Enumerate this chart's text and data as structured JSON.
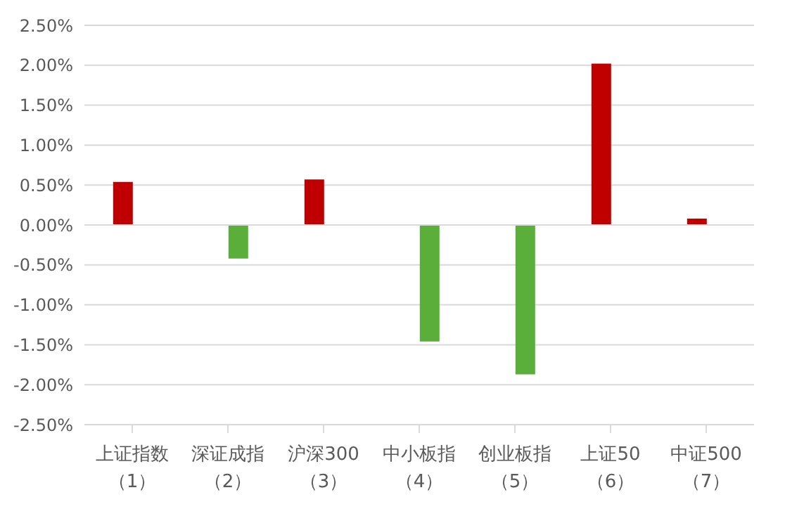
{
  "chart_data": {
    "type": "bar",
    "categories": [
      "上证指数（1）",
      "深证成指（2）",
      "沪深300（3）",
      "中小板指（4）",
      "创业板指（5）",
      "上证50（6）",
      "中证500（7）"
    ],
    "series": [
      {
        "color": "#c00000",
        "values": [
          0.54,
          null,
          0.57,
          null,
          null,
          2.02,
          0.08
        ]
      },
      {
        "color": "#5aae3a",
        "values": [
          null,
          -0.42,
          null,
          -1.46,
          -1.87,
          null,
          null
        ]
      }
    ],
    "ylim": [
      -2.5,
      2.5
    ],
    "yticks": [
      {
        "value": -2.5,
        "label": "-2.50%"
      },
      {
        "value": -2,
        "label": "-2.00%"
      },
      {
        "value": -1.5,
        "label": "-1.50%"
      },
      {
        "value": -1,
        "label": "-1.00%"
      },
      {
        "value": -0.5,
        "label": "-0.50%"
      },
      {
        "value": 0,
        "label": "0.00%"
      },
      {
        "value": 0.5,
        "label": "0.50%"
      },
      {
        "value": 1,
        "label": "1.00%"
      },
      {
        "value": 1.5,
        "label": "1.50%"
      },
      {
        "value": 2,
        "label": "2.00%"
      },
      {
        "value": 2.5,
        "label": "2.50%"
      }
    ],
    "grid": "y",
    "legend": false
  }
}
